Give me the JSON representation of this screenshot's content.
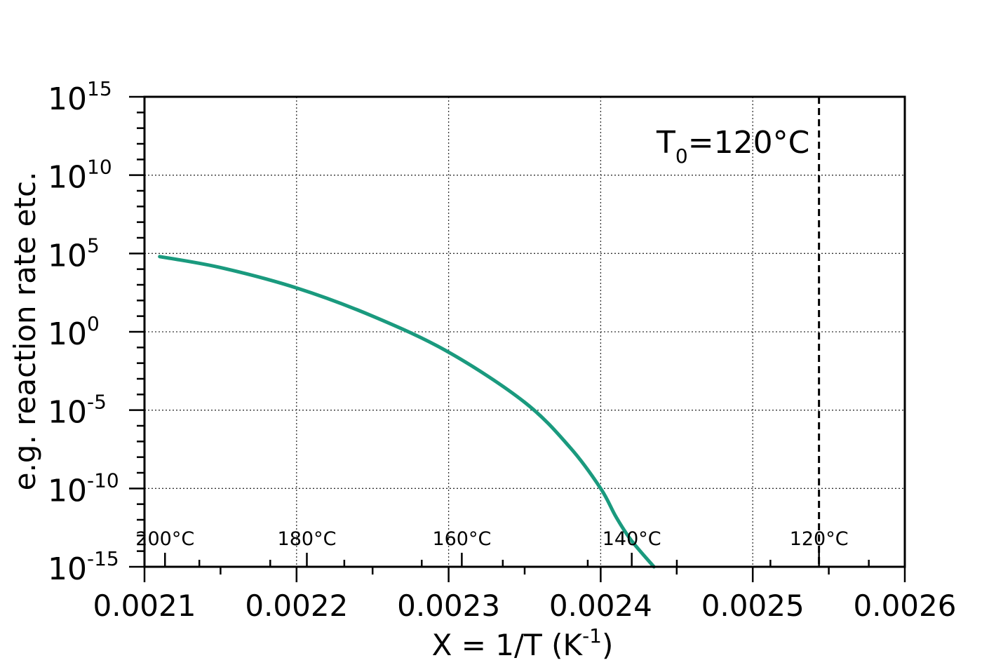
{
  "chart_data": {
    "type": "line",
    "xlabel": {
      "main": "X = 1/T (K",
      "sup": "-1",
      "end": ")"
    },
    "ylabel": "e.g. reaction rate etc.",
    "xlim": [
      0.0021,
      0.0026
    ],
    "ylim_exponent": [
      -15,
      15
    ],
    "y_scale": "log",
    "grid": true,
    "x_ticks": [
      "0.0021",
      "0.0022",
      "0.0023",
      "0.0024",
      "0.0025",
      "0.0026"
    ],
    "y_ticks": [
      {
        "base": "10",
        "exp": "15"
      },
      {
        "base": "10",
        "exp": "10"
      },
      {
        "base": "10",
        "exp": "5"
      },
      {
        "base": "10",
        "exp": "0"
      },
      {
        "base": "10",
        "exp": "-5"
      },
      {
        "base": "10",
        "exp": "-10"
      },
      {
        "base": "10",
        "exp": "-15"
      }
    ],
    "temperature_labels": [
      "200°C",
      "180°C",
      "160°C",
      "140°C",
      "120°C"
    ],
    "reference_line": {
      "T0_C": 120,
      "label_main": "T",
      "label_sub": "0",
      "label_rest": "=120°C"
    },
    "series": [
      {
        "color": "#1a9a7e",
        "x": [
          0.00211,
          0.00215,
          0.0022,
          0.00225,
          0.0023,
          0.00235,
          0.00238,
          0.0024,
          0.00241,
          0.00242,
          0.002435
        ],
        "y_exponent": [
          4.8,
          4.1,
          2.8,
          1.0,
          -1.3,
          -4.5,
          -7.4,
          -10.0,
          -11.8,
          -13.3,
          -15.0
        ]
      }
    ]
  }
}
